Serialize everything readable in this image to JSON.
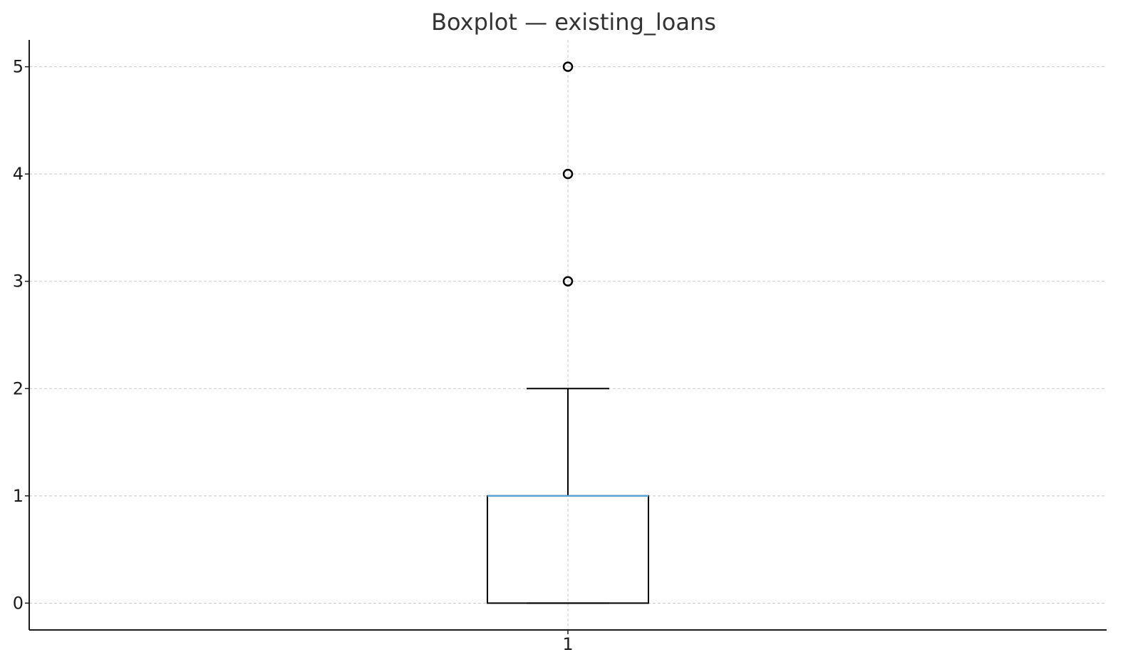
{
  "chart_data": {
    "type": "boxplot",
    "title": "Boxplot — existing_loans",
    "xlabel": "",
    "ylabel": "",
    "categories": [
      "1"
    ],
    "ylim": [
      -0.25,
      5.25
    ],
    "yticks": [
      0,
      1,
      2,
      3,
      4,
      5
    ],
    "grid": true,
    "boxes": [
      {
        "category": "1",
        "whisker_low": 0,
        "q1": 0,
        "median": 1,
        "q3": 1,
        "whisker_high": 2,
        "outliers": [
          3,
          4,
          5
        ]
      }
    ],
    "colors": {
      "median": "#5ba3d0",
      "box": "#000000",
      "grid": "#c8c8c8"
    }
  }
}
